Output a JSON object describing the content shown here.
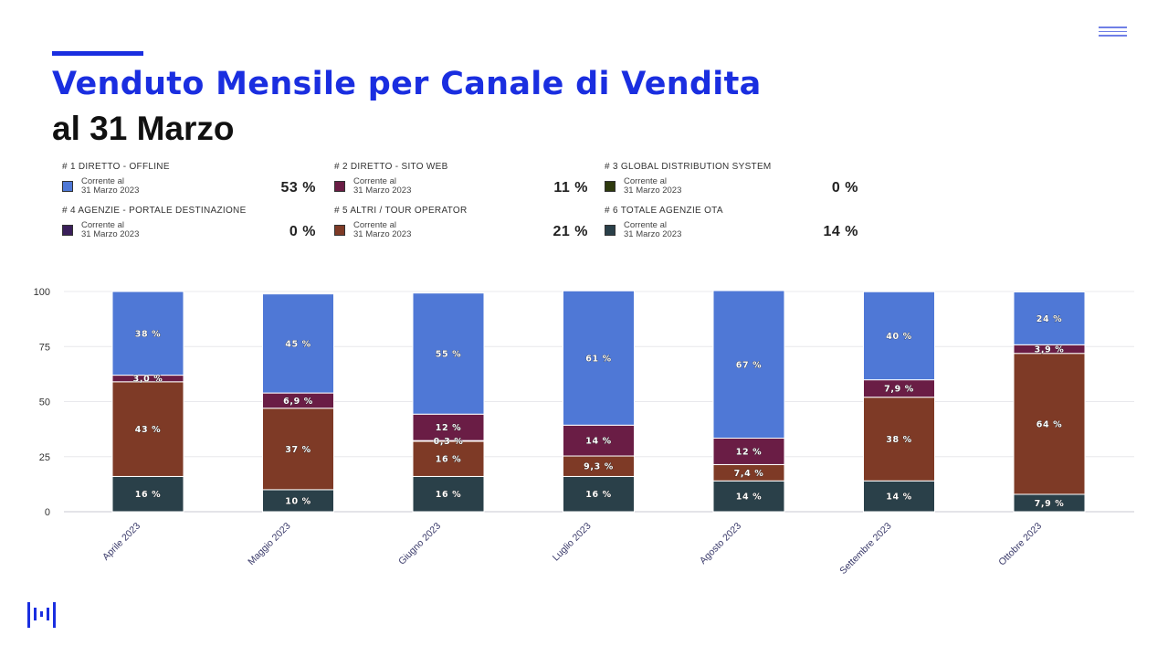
{
  "header": {
    "title": "Venduto Mensile per Canale di Vendita",
    "subtitle": "al 31 Marzo"
  },
  "kpis": [
    {
      "head": "# 1 DIRETTO - OFFLINE",
      "line1": "Corrente al",
      "line2": "31 Marzo 2023",
      "value": "53 %",
      "color": "#4f78d6"
    },
    {
      "head": "# 2 DIRETTO - SITO WEB",
      "line1": "Corrente al",
      "line2": "31 Marzo 2023",
      "value": "11 %",
      "color": "#6a1d45"
    },
    {
      "head": "# 3 GLOBAL DISTRIBUTION SYSTEM",
      "line1": "Corrente al",
      "line2": "31 Marzo 2023",
      "value": "0 %",
      "color": "#2e3a0e"
    },
    {
      "head": "# 4 AGENZIE - PORTALE DESTINAZIONE",
      "line1": "Corrente al",
      "line2": "31 Marzo 2023",
      "value": "0 %",
      "color": "#3a1f5a"
    },
    {
      "head": "# 5 ALTRI / TOUR OPERATOR",
      "line1": "Corrente al",
      "line2": "31 Marzo 2023",
      "value": "21 %",
      "color": "#7e3a26"
    },
    {
      "head": "# 6 TOTALE AGENZIE OTA",
      "line1": "Corrente al",
      "line2": "31 Marzo 2023",
      "value": "14 %",
      "color": "#2a4049"
    }
  ],
  "chart_data": {
    "type": "bar",
    "stacked": true,
    "categories": [
      "Aprile 2023",
      "Maggio 2023",
      "Giugno 2023",
      "Luglio 2023",
      "Agosto 2023",
      "Settembre 2023",
      "Ottobre 2023"
    ],
    "ylim": [
      0,
      100
    ],
    "yticks": [
      "0",
      "25",
      "50",
      "75",
      "100"
    ],
    "grid": true,
    "series": [
      {
        "color": "#2a4049",
        "values": [
          16,
          10,
          16,
          16,
          14,
          14,
          7.9
        ],
        "labels": [
          "16 %",
          "10 %",
          "16 %",
          "16 %",
          "14 %",
          "14 %",
          "7,9 %"
        ]
      },
      {
        "color": "#7e3a26",
        "values": [
          43,
          37,
          16,
          9.3,
          7.4,
          38,
          64
        ],
        "labels": [
          "43 %",
          "37 %",
          "16 %",
          "9,3 %",
          "7,4 %",
          "38 %",
          "64 %"
        ]
      },
      {
        "color": "#ffffff",
        "values": [
          0,
          0,
          0.3,
          0,
          0,
          0,
          0
        ],
        "labels": [
          "",
          "",
          "0,3 %",
          "",
          "",
          "",
          ""
        ]
      },
      {
        "color": "#6a1d45",
        "values": [
          3.0,
          6.9,
          12,
          14,
          12,
          7.9,
          3.9
        ],
        "labels": [
          "3,0 %",
          "6,9 %",
          "12 %",
          "14 %",
          "12 %",
          "7,9 %",
          "3,9 %"
        ]
      },
      {
        "color": "#4f78d6",
        "values": [
          38,
          45,
          55,
          61,
          67,
          40,
          24
        ],
        "labels": [
          "38 %",
          "45 %",
          "55 %",
          "61 %",
          "67 %",
          "40 %",
          "24 %"
        ]
      }
    ]
  }
}
